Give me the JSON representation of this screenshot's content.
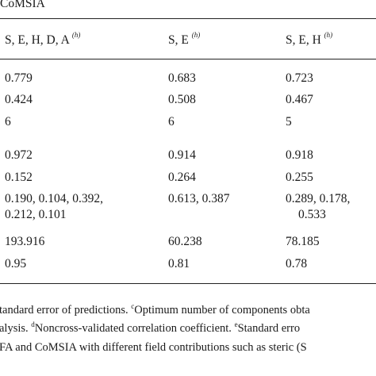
{
  "table": {
    "section_label": "CoMSIA",
    "columns": [
      {
        "label": "S, E, H, D, A",
        "note": "(h)"
      },
      {
        "label": "S, E",
        "note": "(h)"
      },
      {
        "label": "S, E, H",
        "note": "(h)"
      }
    ],
    "rows": [
      [
        "0.779",
        "0.683",
        "0.723"
      ],
      [
        "0.424",
        "0.508",
        "0.467"
      ],
      [
        "6",
        "6",
        "5"
      ],
      [
        "0.972",
        "0.914",
        "0.918"
      ],
      [
        "0.152",
        "0.264",
        "0.255"
      ],
      [
        [
          "0.190, 0.104, 0.392,",
          "0.212, 0.101"
        ],
        [
          "0.613, 0.387"
        ],
        [
          "0.289, 0.178,",
          "0.533"
        ]
      ],
      [
        "193.916",
        "60.238",
        "78.185"
      ],
      [
        "0.95",
        "0.81",
        "0.78"
      ]
    ]
  },
  "footnotes": {
    "line1_a": "tandard error of predictions.",
    "line1_mark": "c",
    "line1_b": "Optimum number of components obta",
    "line2_a": "alysis.",
    "line2_mark_d": "d",
    "line2_b": "Noncross-validated correlation coefficient.",
    "line2_mark_e": "e",
    "line2_c": "Standard erro",
    "line3": "FA and CoMSIA with different field contributions such as steric (S"
  }
}
